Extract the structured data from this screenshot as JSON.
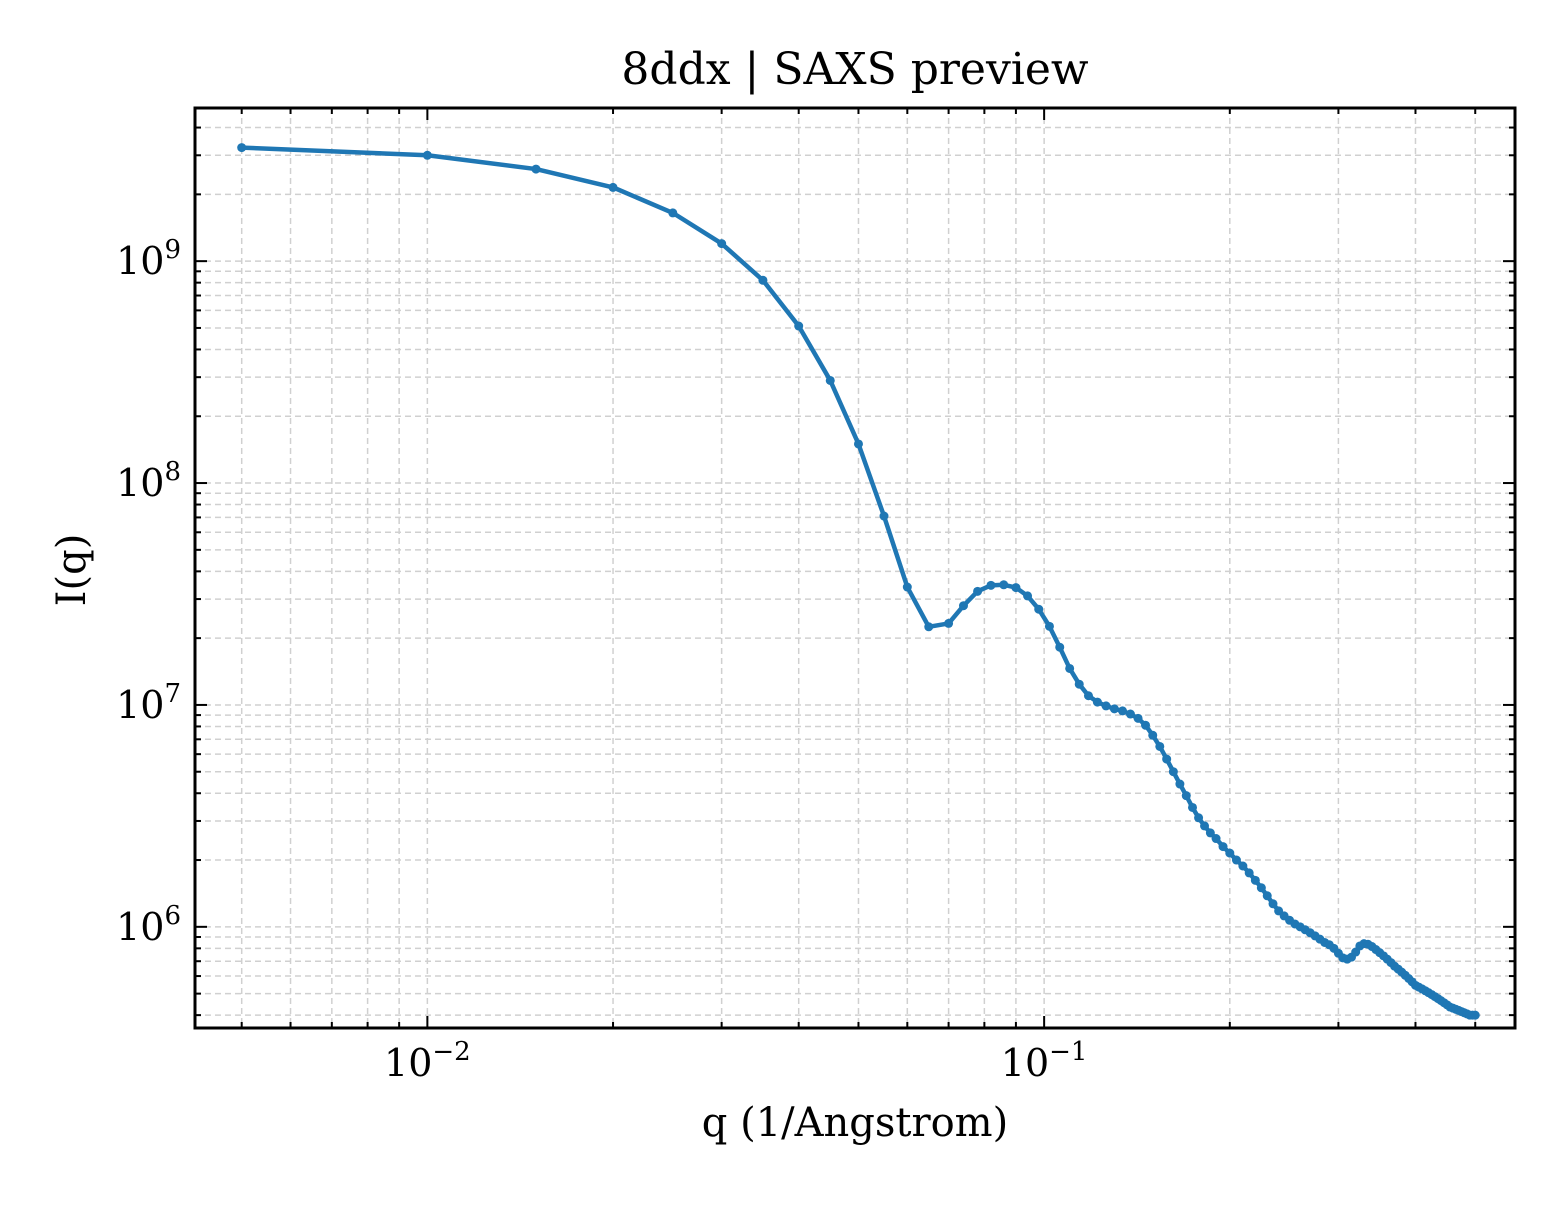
{
  "chart_data": {
    "type": "line",
    "title": "8ddx | SAXS preview",
    "xlabel": "q (1/Angstrom)",
    "ylabel": "I(q)",
    "xscale": "log",
    "yscale": "log",
    "xlim": [
      0.0042,
      0.58
    ],
    "ylim": [
      350000,
      4900000000
    ],
    "grid": true,
    "legend": "none",
    "colors": {
      "series": "#1f77b4",
      "grid": "#d0d0d0",
      "axis": "#000000"
    },
    "x_ticks": [
      {
        "base": "10",
        "exp": "−2",
        "value": 0.01
      },
      {
        "base": "10",
        "exp": "−1",
        "value": 0.1
      }
    ],
    "y_ticks": [
      {
        "base": "10",
        "exp": "6",
        "value": 1000000
      },
      {
        "base": "10",
        "exp": "7",
        "value": 10000000
      },
      {
        "base": "10",
        "exp": "8",
        "value": 100000000
      },
      {
        "base": "10",
        "exp": "9",
        "value": 1000000000
      }
    ],
    "series": [
      {
        "x": [
          0.005,
          0.01,
          0.015,
          0.02,
          0.025,
          0.03,
          0.035,
          0.04,
          0.045,
          0.05,
          0.055,
          0.06,
          0.065,
          0.07,
          0.074,
          0.078,
          0.082,
          0.086,
          0.09,
          0.094,
          0.098,
          0.102,
          0.106,
          0.11,
          0.114,
          0.118,
          0.122,
          0.126,
          0.13,
          0.134,
          0.138,
          0.142,
          0.146,
          0.15,
          0.154,
          0.158,
          0.162,
          0.166,
          0.17,
          0.174,
          0.178,
          0.182,
          0.186,
          0.19,
          0.195,
          0.2,
          0.205,
          0.21,
          0.215,
          0.22,
          0.225,
          0.23,
          0.235,
          0.24,
          0.245,
          0.25,
          0.255,
          0.26,
          0.265,
          0.27,
          0.275,
          0.28,
          0.285,
          0.29,
          0.295,
          0.3,
          0.305,
          0.31,
          0.315,
          0.32,
          0.325,
          0.33,
          0.335,
          0.34,
          0.345,
          0.35,
          0.355,
          0.36,
          0.365,
          0.37,
          0.375,
          0.38,
          0.385,
          0.39,
          0.395,
          0.4,
          0.405,
          0.41,
          0.415,
          0.42,
          0.425,
          0.43,
          0.435,
          0.44,
          0.445,
          0.45,
          0.455,
          0.46,
          0.465,
          0.47,
          0.475,
          0.48,
          0.485,
          0.49,
          0.495,
          0.5
        ],
        "y": [
          3250000000,
          3000000000,
          2600000000,
          2150000000,
          1650000000,
          1200000000,
          820000000,
          510000000,
          290000000,
          150000000,
          71000000,
          34000000,
          22500000,
          23300000,
          28000000,
          32500000,
          34600000,
          34800000,
          33800000,
          31000000,
          27000000,
          22600000,
          18200000,
          14600000,
          12400000,
          11000000,
          10300000,
          9900000,
          9600000,
          9400000,
          9100000,
          8700000,
          8100000,
          7300000,
          6500000,
          5700000,
          5000000,
          4400000,
          3900000,
          3450000,
          3100000,
          2850000,
          2650000,
          2500000,
          2300000,
          2150000,
          2000000,
          1880000,
          1750000,
          1620000,
          1500000,
          1380000,
          1270000,
          1180000,
          1120000,
          1070000,
          1030000,
          1000000,
          970000,
          940000,
          910000,
          880000,
          850000,
          830000,
          800000,
          760000,
          725000,
          715000,
          730000,
          770000,
          820000,
          840000,
          835000,
          815000,
          790000,
          765000,
          740000,
          715000,
          690000,
          665000,
          645000,
          625000,
          605000,
          585000,
          565000,
          545000,
          535000,
          525000,
          515000,
          505000,
          495000,
          485000,
          475000,
          465000,
          455000,
          445000,
          435000,
          430000,
          425000,
          420000,
          415000,
          410000,
          405000,
          400000,
          400000,
          400000
        ]
      }
    ]
  }
}
